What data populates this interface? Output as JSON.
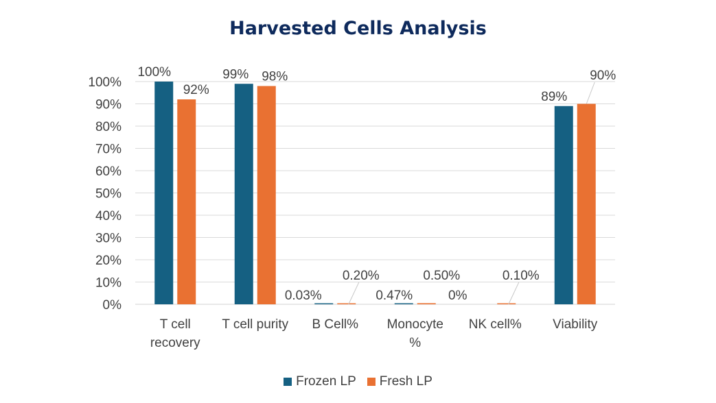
{
  "chart_data": {
    "type": "bar",
    "title": "Harvested Cells Analysis",
    "categories": [
      [
        "T cell",
        "recovery"
      ],
      [
        "T cell purity"
      ],
      [
        "B Cell%"
      ],
      [
        "Monocyte",
        "%"
      ],
      [
        "NK cell%"
      ],
      [
        "Viability"
      ]
    ],
    "series": [
      {
        "name": "Frozen LP",
        "color": "#156082",
        "values": [
          100,
          99,
          0.03,
          0.47,
          0,
          89
        ],
        "labels": [
          "100%",
          "99%",
          "0.03%",
          "0.47%",
          "0%",
          "89%"
        ]
      },
      {
        "name": "Fresh LP",
        "color": "#e97132",
        "values": [
          92,
          98,
          0.2,
          0.5,
          0.1,
          90
        ],
        "labels": [
          "92%",
          "98%",
          "0.20%",
          "0.50%",
          "0.10%",
          "90%"
        ]
      }
    ],
    "yticks": [
      "0%",
      "10%",
      "20%",
      "30%",
      "40%",
      "50%",
      "60%",
      "70%",
      "80%",
      "90%",
      "100%"
    ],
    "ylim": [
      0,
      100
    ],
    "grid": true,
    "legend": "bottom-center"
  }
}
